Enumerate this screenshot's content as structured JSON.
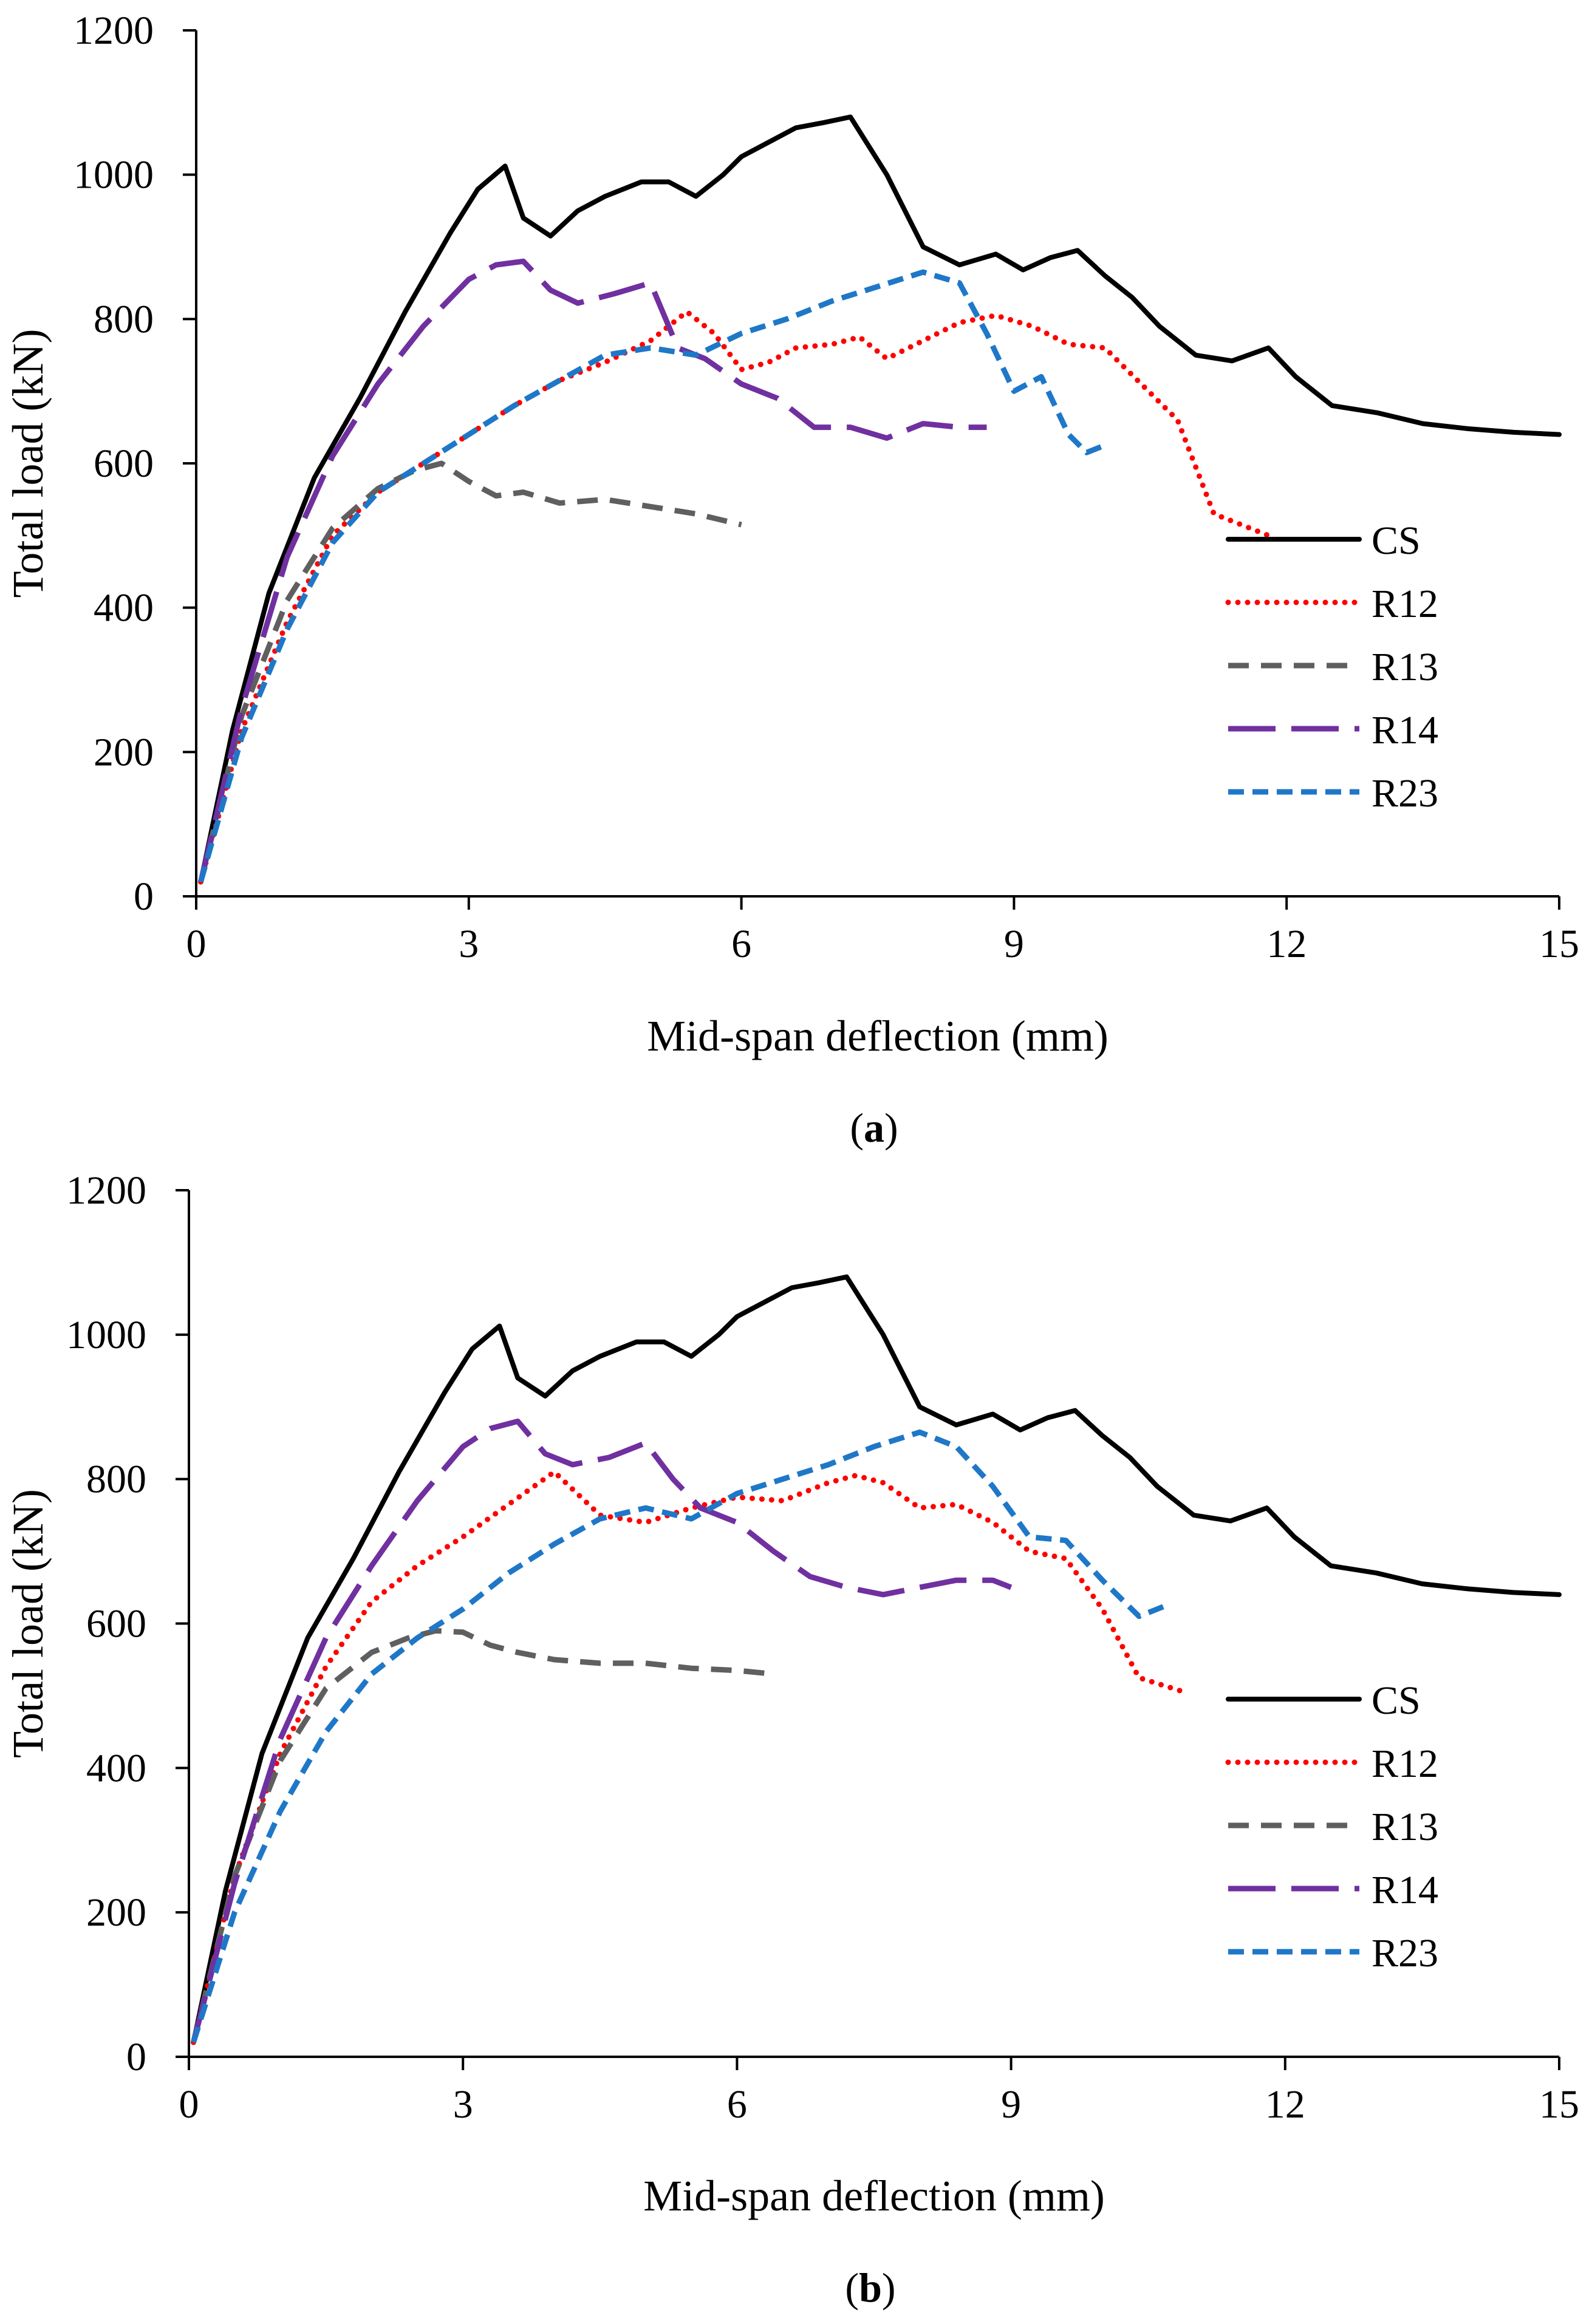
{
  "chart_data": [
    {
      "type": "line",
      "caption_prefix": "(",
      "caption_letter": "a",
      "caption_suffix": ")",
      "xlabel": "Mid-span deflection (mm)",
      "ylabel": "Total load (kN)",
      "xlim": [
        0,
        15
      ],
      "ylim": [
        0,
        1200
      ],
      "xticks": [
        0,
        3,
        6,
        9,
        12,
        15
      ],
      "yticks": [
        0,
        200,
        400,
        600,
        800,
        1000,
        1200
      ],
      "grid": false,
      "legend": "right",
      "series": [
        {
          "name": "CS",
          "color": "#000000",
          "dash": "solid",
          "x": [
            0.05,
            0.4,
            0.8,
            1.3,
            1.8,
            2.3,
            2.8,
            3.1,
            3.4,
            3.6,
            3.9,
            4.2,
            4.5,
            4.9,
            5.2,
            5.5,
            5.8,
            6.0,
            6.3,
            6.6,
            6.9,
            7.2,
            7.6,
            8.0,
            8.4,
            8.8,
            9.1,
            9.4,
            9.7,
            10.0,
            10.3,
            10.6,
            11.0,
            11.4,
            11.8,
            12.1,
            12.5,
            13.0,
            13.5,
            14.0,
            14.5,
            15.0
          ],
          "y": [
            20,
            230,
            420,
            580,
            690,
            810,
            920,
            980,
            1012,
            940,
            915,
            950,
            970,
            990,
            990,
            970,
            1000,
            1025,
            1045,
            1065,
            1072,
            1080,
            1000,
            900,
            875,
            890,
            868,
            885,
            895,
            860,
            830,
            790,
            750,
            742,
            760,
            720,
            680,
            670,
            655,
            648,
            643,
            640
          ]
        },
        {
          "name": "R12",
          "color": "#ff0000",
          "dash": "dotted",
          "x": [
            0.05,
            0.5,
            1.0,
            1.5,
            2.0,
            2.5,
            3.0,
            3.5,
            4.0,
            4.5,
            5.0,
            5.4,
            5.7,
            6.0,
            6.3,
            6.6,
            7.0,
            7.3,
            7.6,
            8.0,
            8.4,
            8.8,
            9.2,
            9.6,
            10.0,
            10.4,
            10.8,
            11.2,
            11.8
          ],
          "y": [
            20,
            230,
            380,
            500,
            560,
            600,
            640,
            680,
            715,
            740,
            770,
            810,
            780,
            730,
            740,
            760,
            765,
            775,
            745,
            770,
            795,
            805,
            790,
            765,
            760,
            710,
            660,
            530,
            500
          ]
        },
        {
          "name": "R13",
          "color": "#5f5f5f",
          "dash": "dashed",
          "x": [
            0.05,
            0.5,
            1.0,
            1.5,
            2.0,
            2.4,
            2.7,
            3.0,
            3.3,
            3.6,
            4.0,
            4.5,
            5.0,
            5.5,
            6.0
          ],
          "y": [
            20,
            250,
            410,
            510,
            565,
            590,
            600,
            575,
            555,
            560,
            545,
            550,
            540,
            530,
            515
          ]
        },
        {
          "name": "R14",
          "color": "#7030a0",
          "dash": "longdash",
          "x": [
            0.05,
            0.5,
            1.0,
            1.5,
            2.0,
            2.5,
            3.0,
            3.3,
            3.6,
            3.9,
            4.2,
            4.6,
            5.0,
            5.3,
            5.6,
            6.0,
            6.4,
            6.8,
            7.2,
            7.6,
            8.0,
            8.4,
            8.7
          ],
          "y": [
            20,
            260,
            470,
            610,
            710,
            790,
            855,
            875,
            880,
            840,
            822,
            835,
            850,
            760,
            745,
            710,
            690,
            650,
            650,
            635,
            655,
            650,
            650
          ]
        },
        {
          "name": "R23",
          "color": "#1f77c8",
          "dash": "shortdash",
          "x": [
            0.05,
            0.5,
            1.0,
            1.5,
            2.0,
            2.5,
            3.0,
            3.5,
            4.0,
            4.5,
            5.0,
            5.5,
            6.0,
            6.5,
            7.0,
            7.5,
            8.0,
            8.4,
            8.7,
            9.0,
            9.3,
            9.6,
            9.8,
            10.0
          ],
          "y": [
            20,
            220,
            370,
            490,
            560,
            600,
            640,
            680,
            715,
            750,
            760,
            750,
            780,
            800,
            825,
            845,
            865,
            850,
            780,
            700,
            720,
            640,
            615,
            625
          ]
        }
      ]
    },
    {
      "type": "line",
      "caption_prefix": "(",
      "caption_letter": "b",
      "caption_suffix": ")",
      "xlabel": "Mid-span deflection (mm)",
      "ylabel": "Total load (kN)",
      "xlim": [
        0,
        15
      ],
      "ylim": [
        0,
        1200
      ],
      "xticks": [
        0,
        3,
        6,
        9,
        12,
        15
      ],
      "yticks": [
        0,
        200,
        400,
        600,
        800,
        1000,
        1200
      ],
      "grid": false,
      "legend": "right",
      "series": [
        {
          "name": "CS",
          "color": "#000000",
          "dash": "solid",
          "x": [
            0.05,
            0.4,
            0.8,
            1.3,
            1.8,
            2.3,
            2.8,
            3.1,
            3.4,
            3.6,
            3.9,
            4.2,
            4.5,
            4.9,
            5.2,
            5.5,
            5.8,
            6.0,
            6.3,
            6.6,
            6.9,
            7.2,
            7.6,
            8.0,
            8.4,
            8.8,
            9.1,
            9.4,
            9.7,
            10.0,
            10.3,
            10.6,
            11.0,
            11.4,
            11.8,
            12.1,
            12.5,
            13.0,
            13.5,
            14.0,
            14.5,
            15.0
          ],
          "y": [
            20,
            230,
            420,
            580,
            690,
            810,
            920,
            980,
            1012,
            940,
            915,
            950,
            970,
            990,
            990,
            970,
            1000,
            1025,
            1045,
            1065,
            1072,
            1080,
            1000,
            900,
            875,
            890,
            868,
            885,
            895,
            860,
            830,
            790,
            750,
            742,
            760,
            720,
            680,
            670,
            655,
            648,
            643,
            640
          ]
        },
        {
          "name": "R12",
          "color": "#ff0000",
          "dash": "dotted",
          "x": [
            0.05,
            0.5,
            1.0,
            1.5,
            2.0,
            2.5,
            3.0,
            3.5,
            4.0,
            4.5,
            5.0,
            5.5,
            6.0,
            6.5,
            7.0,
            7.3,
            7.6,
            8.0,
            8.4,
            8.8,
            9.2,
            9.6,
            10.0,
            10.4,
            10.9
          ],
          "y": [
            20,
            250,
            420,
            540,
            630,
            680,
            720,
            765,
            810,
            750,
            740,
            760,
            775,
            770,
            795,
            805,
            795,
            760,
            765,
            740,
            700,
            690,
            620,
            525,
            505
          ]
        },
        {
          "name": "R13",
          "color": "#5f5f5f",
          "dash": "dashed",
          "x": [
            0.05,
            0.5,
            1.0,
            1.5,
            2.0,
            2.4,
            2.7,
            3.0,
            3.3,
            3.6,
            4.0,
            4.5,
            5.0,
            5.5,
            6.0,
            6.4
          ],
          "y": [
            20,
            250,
            410,
            510,
            560,
            580,
            590,
            588,
            570,
            560,
            550,
            545,
            545,
            538,
            535,
            530
          ]
        },
        {
          "name": "R14",
          "color": "#7030a0",
          "dash": "longdash",
          "x": [
            0.05,
            0.5,
            1.0,
            1.5,
            2.0,
            2.5,
            3.0,
            3.3,
            3.6,
            3.9,
            4.2,
            4.6,
            5.0,
            5.3,
            5.6,
            6.0,
            6.4,
            6.8,
            7.2,
            7.6,
            8.0,
            8.4,
            8.8,
            9.0
          ],
          "y": [
            20,
            240,
            440,
            580,
            680,
            770,
            845,
            870,
            880,
            835,
            820,
            830,
            850,
            800,
            760,
            740,
            700,
            665,
            650,
            640,
            650,
            660,
            660,
            650
          ]
        },
        {
          "name": "R23",
          "color": "#1f77c8",
          "dash": "shortdash",
          "x": [
            0.05,
            0.5,
            1.0,
            1.5,
            2.0,
            2.5,
            3.0,
            3.5,
            4.0,
            4.5,
            5.0,
            5.5,
            6.0,
            6.5,
            7.0,
            7.5,
            8.0,
            8.4,
            8.8,
            9.2,
            9.6,
            10.0,
            10.4,
            10.7
          ],
          "y": [
            20,
            200,
            340,
            450,
            530,
            580,
            620,
            670,
            710,
            745,
            760,
            745,
            780,
            800,
            820,
            845,
            865,
            845,
            790,
            720,
            715,
            660,
            610,
            625
          ]
        }
      ]
    }
  ]
}
